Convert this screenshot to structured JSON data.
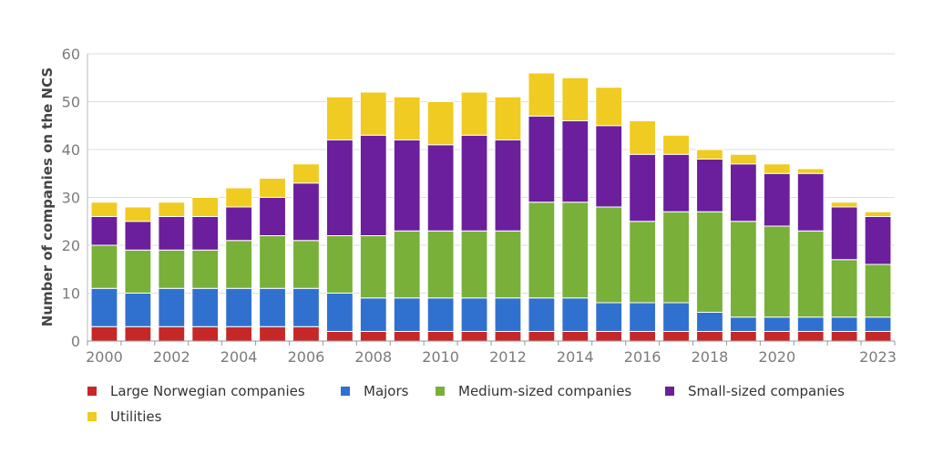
{
  "chart_data": {
    "type": "bar",
    "stacked": true,
    "title": "",
    "xlabel": "",
    "ylabel": "Number of companies on the NCS",
    "ylim": [
      0,
      60
    ],
    "yticks": [
      0,
      10,
      20,
      30,
      40,
      50,
      60
    ],
    "grid": true,
    "legend_position": "bottom-left",
    "categories": [
      "2000",
      "2001",
      "2002",
      "2003",
      "2004",
      "2005",
      "2006",
      "2007",
      "2008",
      "2009",
      "2010",
      "2011",
      "2012",
      "2013",
      "2014",
      "2015",
      "2016",
      "2017",
      "2018",
      "2019",
      "2020",
      "2021",
      "2022",
      "2023"
    ],
    "x_tick_labels": [
      "2000",
      "",
      "2002",
      "",
      "2004",
      "",
      "2006",
      "",
      "2008",
      "",
      "2010",
      "",
      "2012",
      "",
      "2014",
      "",
      "2016",
      "",
      "2018",
      "",
      "2020",
      "",
      "",
      "2023"
    ],
    "series": [
      {
        "name": "Large Norwegian companies",
        "color": "#c62828",
        "values": [
          3,
          3,
          3,
          3,
          3,
          3,
          3,
          2,
          2,
          2,
          2,
          2,
          2,
          2,
          2,
          2,
          2,
          2,
          2,
          2,
          2,
          2,
          2,
          2
        ]
      },
      {
        "name": "Majors",
        "color": "#3071d0",
        "values": [
          8,
          7,
          8,
          8,
          8,
          8,
          8,
          8,
          7,
          7,
          7,
          7,
          7,
          7,
          7,
          6,
          6,
          6,
          4,
          3,
          3,
          3,
          3,
          3
        ]
      },
      {
        "name": "Medium-sized companies",
        "color": "#78b03a",
        "values": [
          9,
          9,
          8,
          8,
          10,
          11,
          10,
          12,
          13,
          14,
          14,
          14,
          14,
          20,
          20,
          20,
          17,
          19,
          21,
          20,
          19,
          18,
          12,
          11
        ]
      },
      {
        "name": "Small-sized companies",
        "color": "#6b1f9c",
        "values": [
          6,
          6,
          7,
          7,
          7,
          8,
          12,
          20,
          21,
          19,
          18,
          20,
          19,
          18,
          17,
          17,
          14,
          12,
          11,
          12,
          11,
          12,
          11,
          10
        ]
      },
      {
        "name": "Utilities",
        "color": "#f0cb21",
        "values": [
          3,
          3,
          3,
          4,
          4,
          4,
          4,
          9,
          9,
          9,
          9,
          9,
          9,
          9,
          9,
          8,
          7,
          4,
          2,
          2,
          2,
          1,
          1,
          1
        ]
      }
    ]
  }
}
